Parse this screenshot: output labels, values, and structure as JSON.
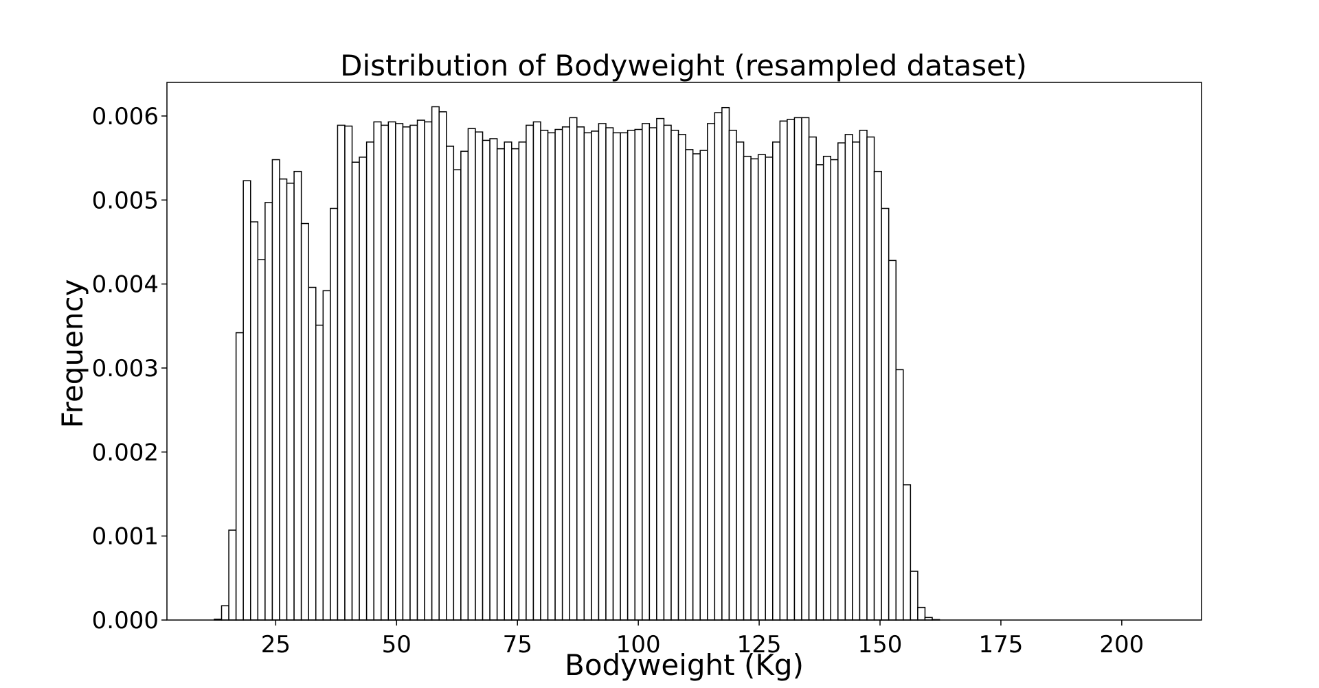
{
  "chart_data": {
    "type": "bar",
    "title": "Distribution of Bodyweight (resampled dataset)",
    "xlabel": "Bodyweight (Kg)",
    "ylabel": "Frequency",
    "xlim": [
      2.5,
      216.5
    ],
    "ylim": [
      0,
      0.0064
    ],
    "xticks": [
      25,
      50,
      75,
      100,
      125,
      150,
      175,
      200
    ],
    "xtick_labels": [
      "25",
      "50",
      "75",
      "100",
      "125",
      "150",
      "175",
      "200"
    ],
    "yticks": [
      0,
      0.001,
      0.002,
      0.003,
      0.004,
      0.005,
      0.006
    ],
    "ytick_labels": [
      "0.000",
      "0.001",
      "0.002",
      "0.003",
      "0.004",
      "0.005",
      "0.006"
    ],
    "grid": false,
    "bar_fill": "#ffffff",
    "bar_edge": "#000000",
    "bin_start": 12.3,
    "bin_width": 1.5,
    "values": [
      1e-05,
      0.00017,
      0.00107,
      0.00342,
      0.00523,
      0.00474,
      0.00429,
      0.00497,
      0.00548,
      0.00525,
      0.0052,
      0.00534,
      0.00472,
      0.00396,
      0.00351,
      0.00392,
      0.0049,
      0.00589,
      0.00588,
      0.00545,
      0.00551,
      0.00569,
      0.00593,
      0.00589,
      0.00593,
      0.00591,
      0.00587,
      0.00589,
      0.00595,
      0.00593,
      0.00611,
      0.00605,
      0.00564,
      0.00536,
      0.00558,
      0.00585,
      0.00581,
      0.00571,
      0.00573,
      0.00561,
      0.00569,
      0.00561,
      0.00569,
      0.00589,
      0.00593,
      0.00583,
      0.0058,
      0.00584,
      0.00587,
      0.00598,
      0.00587,
      0.0058,
      0.00582,
      0.00591,
      0.00586,
      0.0058,
      0.0058,
      0.00583,
      0.00584,
      0.00591,
      0.00586,
      0.00597,
      0.00589,
      0.00583,
      0.00578,
      0.0056,
      0.00555,
      0.00559,
      0.00591,
      0.00604,
      0.0061,
      0.00583,
      0.00569,
      0.00552,
      0.00549,
      0.00554,
      0.00551,
      0.00569,
      0.00594,
      0.00596,
      0.00598,
      0.00598,
      0.00575,
      0.00542,
      0.00552,
      0.00548,
      0.00568,
      0.00578,
      0.00569,
      0.00583,
      0.00575,
      0.00534,
      0.0049,
      0.00428,
      0.00298,
      0.00161,
      0.00058,
      0.00015,
      3e-05,
      5e-06
    ]
  }
}
